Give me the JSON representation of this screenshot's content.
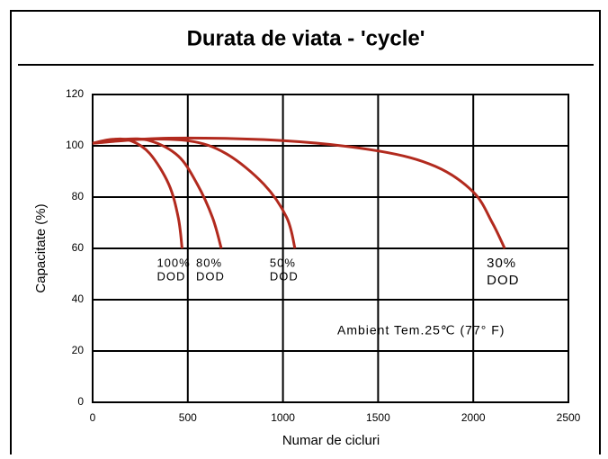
{
  "chart_data": {
    "type": "line",
    "title": "Durata de viata - 'cycle'",
    "xlabel": "Numar de cicluri",
    "ylabel": "Capacitate (%)",
    "xlim": [
      0,
      2500
    ],
    "ylim": [
      0,
      120
    ],
    "xticks": [
      0,
      500,
      1000,
      1500,
      2000,
      2500
    ],
    "yticks": [
      0,
      20,
      40,
      60,
      80,
      100,
      120
    ],
    "grid": true,
    "color": "#b22a1e",
    "series": [
      {
        "x": [
          0,
          100,
          200,
          300,
          400,
          450,
          470
        ],
        "values": [
          101,
          102.5,
          102,
          97,
          85,
          72,
          60
        ]
      },
      {
        "x": [
          0,
          150,
          300,
          450,
          550,
          630,
          676
        ],
        "values": [
          101,
          102.5,
          102,
          96,
          85,
          72,
          60
        ]
      },
      {
        "x": [
          0,
          200,
          500,
          700,
          900,
          1020,
          1063
        ],
        "values": [
          101,
          102.5,
          102,
          97,
          85,
          72,
          60
        ]
      },
      {
        "x": [
          0,
          400,
          1000,
          1500,
          1800,
          2000,
          2100,
          2165
        ],
        "values": [
          101,
          103,
          102,
          98,
          92,
          82,
          70,
          60
        ]
      }
    ],
    "annotations": [
      [
        "100%",
        "DOD"
      ],
      [
        "80%",
        "DOD"
      ],
      [
        "50%",
        "DOD"
      ],
      [
        "30%",
        "DOD"
      ]
    ],
    "note": "Ambient Tem.25℃ (77° F)"
  }
}
